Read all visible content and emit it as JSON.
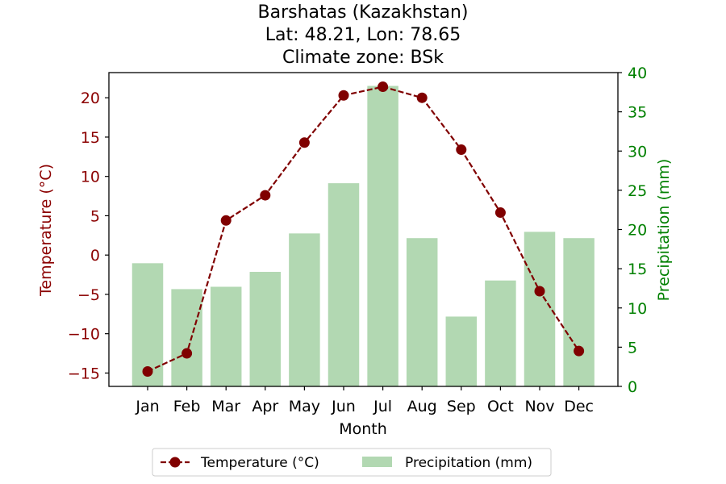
{
  "chart_data": {
    "type": "bar+line",
    "title": [
      "Barshatas (Kazakhstan)",
      "Lat: 48.21, Lon: 78.65",
      "Climate zone: BSk"
    ],
    "xlabel": "Month",
    "ylabel_left": "Temperature (°C)",
    "ylabel_right": "Precipitation (mm)",
    "categories": [
      "Jan",
      "Feb",
      "Mar",
      "Apr",
      "May",
      "Jun",
      "Jul",
      "Aug",
      "Sep",
      "Oct",
      "Nov",
      "Dec"
    ],
    "temperature": {
      "name": "Temperature (°C)",
      "values": [
        -14.8,
        -12.5,
        4.4,
        7.6,
        14.3,
        20.3,
        21.4,
        20.0,
        13.4,
        5.4,
        -4.6,
        -12.2
      ],
      "color": "#800000",
      "style": "dashed",
      "marker": "circle"
    },
    "precipitation": {
      "name": "Precipitation (mm)",
      "values": [
        15.7,
        12.4,
        12.7,
        14.6,
        19.5,
        25.9,
        38.3,
        18.9,
        8.9,
        13.5,
        19.7,
        18.9
      ],
      "color": "#b2d8b2"
    },
    "ylim_left": [
      -16.7,
      23.2
    ],
    "yticks_left": [
      -15,
      -10,
      -5,
      0,
      5,
      10,
      15,
      20
    ],
    "ylim_right": [
      0,
      40
    ],
    "yticks_right": [
      0,
      5,
      10,
      15,
      20,
      25,
      30,
      35,
      40
    ],
    "left_axis_color": "#8b0000",
    "right_axis_color": "#008000",
    "grid": false,
    "legend_position": "bottom-center"
  }
}
